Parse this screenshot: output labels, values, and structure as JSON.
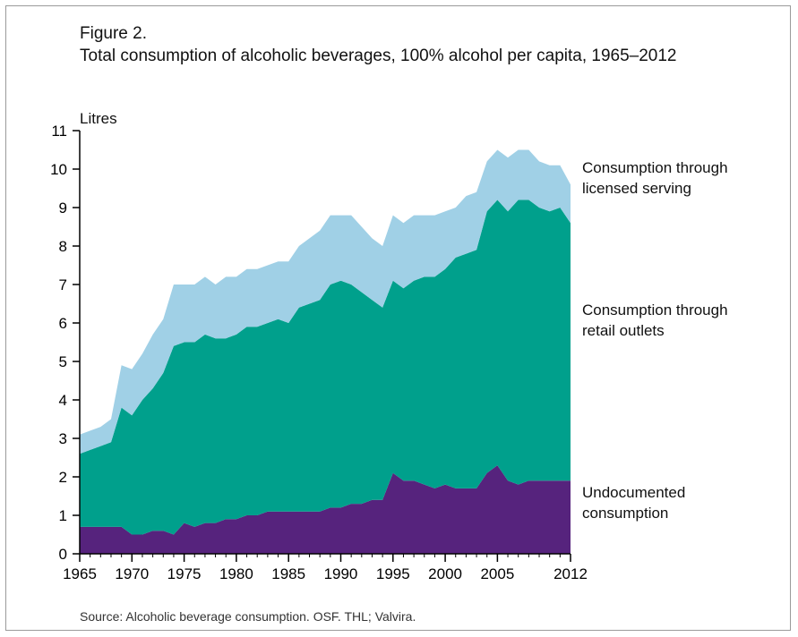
{
  "figure": {
    "label": "Figure 2.",
    "title": "Total consumption of alcoholic beverages, 100% alcohol per capita, 1965–2012",
    "source": "Source: Alcoholic beverage consumption. OSF. THL; Valvira."
  },
  "chart_data": {
    "type": "area",
    "stacked": true,
    "unit_label": "Litres",
    "x": [
      1965,
      1966,
      1967,
      1968,
      1969,
      1970,
      1971,
      1972,
      1973,
      1974,
      1975,
      1976,
      1977,
      1978,
      1979,
      1980,
      1981,
      1982,
      1983,
      1984,
      1985,
      1986,
      1987,
      1988,
      1989,
      1990,
      1991,
      1992,
      1993,
      1994,
      1995,
      1996,
      1997,
      1998,
      1999,
      2000,
      2001,
      2002,
      2003,
      2004,
      2005,
      2006,
      2007,
      2008,
      2009,
      2010,
      2011,
      2012
    ],
    "x_ticks": [
      1965,
      1970,
      1975,
      1980,
      1985,
      1990,
      1995,
      2000,
      2005,
      2012
    ],
    "y_ticks": [
      0,
      1,
      2,
      3,
      4,
      5,
      6,
      7,
      8,
      9,
      10,
      11
    ],
    "xlim": [
      1965,
      2012
    ],
    "ylim": [
      0,
      11
    ],
    "grid": false,
    "legend_placement": "right",
    "series": [
      {
        "name": "Undocumented consumption",
        "color": "#56237d",
        "values": [
          0.7,
          0.7,
          0.7,
          0.7,
          0.7,
          0.5,
          0.5,
          0.6,
          0.6,
          0.5,
          0.8,
          0.7,
          0.8,
          0.8,
          0.9,
          0.9,
          1.0,
          1.0,
          1.1,
          1.1,
          1.1,
          1.1,
          1.1,
          1.1,
          1.2,
          1.2,
          1.3,
          1.3,
          1.4,
          1.4,
          2.1,
          1.9,
          1.9,
          1.8,
          1.7,
          1.8,
          1.7,
          1.7,
          1.7,
          2.1,
          2.3,
          1.9,
          1.8,
          1.9,
          1.9,
          1.9,
          1.9,
          1.9
        ]
      },
      {
        "name": "Consumption through retail outlets",
        "color": "#00a08c",
        "values": [
          1.9,
          2.0,
          2.1,
          2.2,
          3.1,
          3.1,
          3.5,
          3.7,
          4.1,
          4.9,
          4.7,
          4.8,
          4.9,
          4.8,
          4.7,
          4.8,
          4.9,
          4.9,
          4.9,
          5.0,
          4.9,
          5.3,
          5.4,
          5.5,
          5.8,
          5.9,
          5.7,
          5.5,
          5.2,
          5.0,
          5.0,
          5.0,
          5.2,
          5.4,
          5.5,
          5.6,
          6.0,
          6.1,
          6.2,
          6.8,
          6.9,
          7.0,
          7.4,
          7.3,
          7.1,
          7.0,
          7.1,
          6.7
        ]
      },
      {
        "name": "Consumption through licensed serving",
        "color": "#a0d0e6",
        "values": [
          0.5,
          0.5,
          0.5,
          0.6,
          1.1,
          1.2,
          1.2,
          1.4,
          1.4,
          1.6,
          1.5,
          1.5,
          1.5,
          1.4,
          1.6,
          1.5,
          1.5,
          1.5,
          1.5,
          1.5,
          1.6,
          1.6,
          1.7,
          1.8,
          1.8,
          1.7,
          1.8,
          1.7,
          1.6,
          1.6,
          1.7,
          1.7,
          1.7,
          1.6,
          1.6,
          1.5,
          1.3,
          1.5,
          1.5,
          1.3,
          1.3,
          1.4,
          1.3,
          1.3,
          1.2,
          1.2,
          1.1,
          1.0
        ]
      }
    ],
    "legend": [
      {
        "line1": "Consumption through",
        "line2": "licensed serving"
      },
      {
        "line1": "Consumption through",
        "line2": "retail outlets"
      },
      {
        "line1": "Undocumented",
        "line2": "consumption"
      }
    ]
  }
}
